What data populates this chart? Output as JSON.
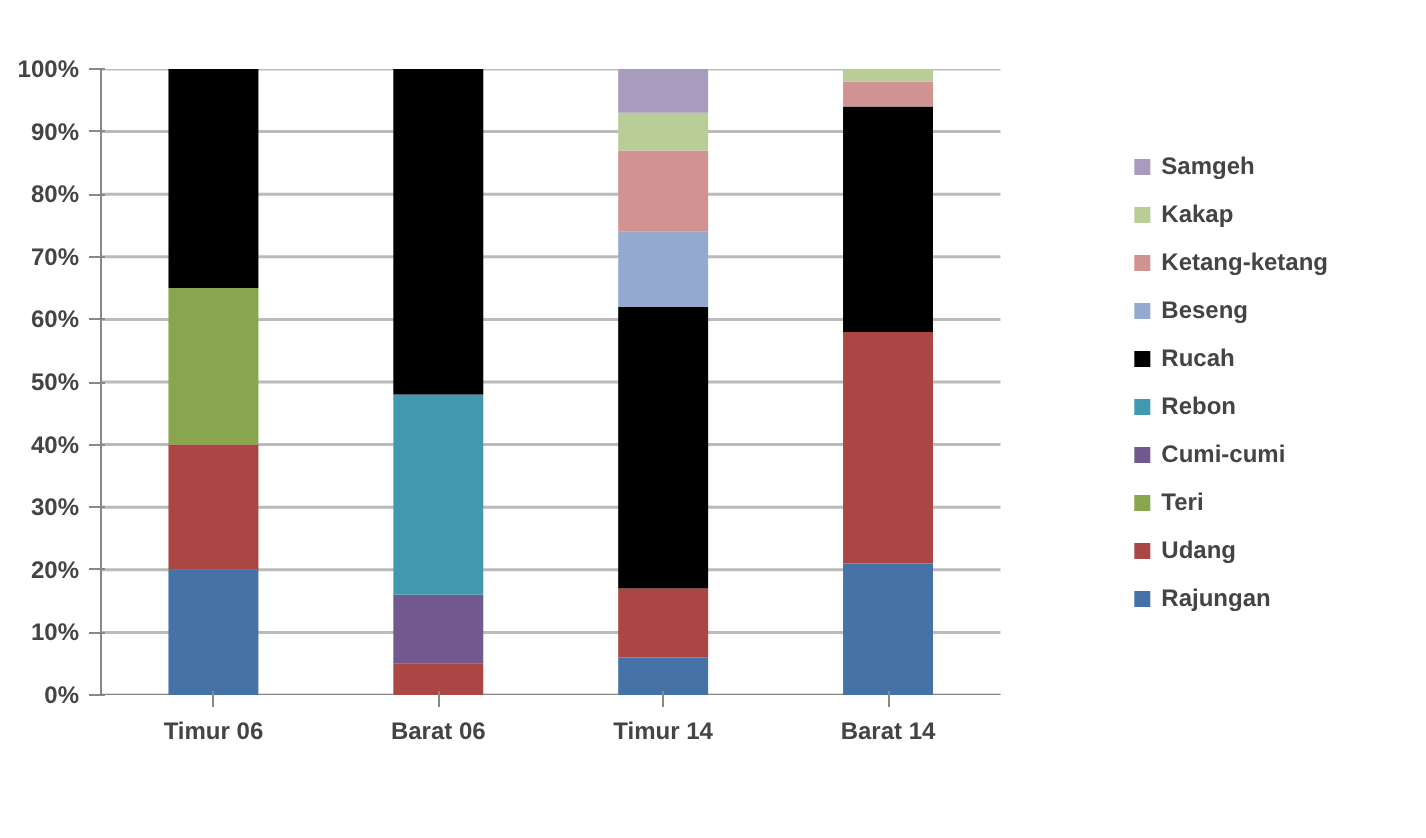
{
  "chart_data": {
    "type": "bar",
    "stacked": true,
    "categories": [
      "Timur 06",
      "Barat 06",
      "Timur 14",
      "Barat 14"
    ],
    "series": [
      {
        "name": "Rajungan",
        "color": "#4572a7",
        "values": [
          20,
          0,
          6,
          21
        ]
      },
      {
        "name": "Udang",
        "color": "#aa4643",
        "values": [
          20,
          5,
          11,
          37
        ]
      },
      {
        "name": "Teri",
        "color": "#89a54e",
        "values": [
          25,
          0,
          0,
          0
        ]
      },
      {
        "name": "Cumi-cumi",
        "color": "#71588f",
        "values": [
          0,
          11,
          0,
          0
        ]
      },
      {
        "name": "Rebon",
        "color": "#4198af",
        "values": [
          0,
          32,
          0,
          0
        ]
      },
      {
        "name": "Rucah",
        "color": "#000000",
        "values": [
          35,
          52,
          45,
          36
        ]
      },
      {
        "name": "Beseng",
        "color": "#93a9cf",
        "values": [
          0,
          0,
          12,
          0
        ]
      },
      {
        "name": "Ketang-ketang",
        "color": "#d19392",
        "values": [
          0,
          0,
          13,
          4
        ]
      },
      {
        "name": "Kakap",
        "color": "#b9cd96",
        "values": [
          0,
          0,
          6,
          2
        ]
      },
      {
        "name": "Samgeh",
        "color": "#a99bbd",
        "values": [
          0,
          0,
          7,
          0
        ]
      }
    ],
    "ylim": [
      0,
      100
    ],
    "yticks": [
      {
        "value": 0,
        "label": "0%"
      },
      {
        "value": 10,
        "label": "10%"
      },
      {
        "value": 20,
        "label": "20%"
      },
      {
        "value": 30,
        "label": "30%"
      },
      {
        "value": 40,
        "label": "40%"
      },
      {
        "value": 50,
        "label": "50%"
      },
      {
        "value": 60,
        "label": "60%"
      },
      {
        "value": 70,
        "label": "70%"
      },
      {
        "value": 80,
        "label": "80%"
      },
      {
        "value": 90,
        "label": "90%"
      },
      {
        "value": 100,
        "label": "100%"
      }
    ],
    "grid": "y",
    "legend": "right"
  }
}
